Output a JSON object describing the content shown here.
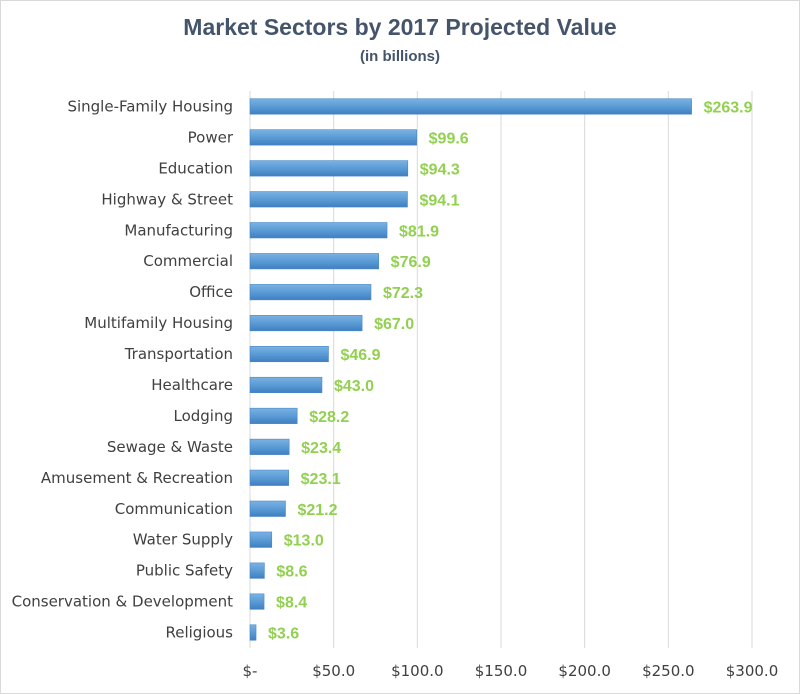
{
  "chart_data": {
    "type": "bar",
    "orientation": "horizontal",
    "title": "Market Sectors by 2017 Projected Value",
    "subtitle": "(in billions)",
    "categories": [
      "Single-Family Housing",
      "Power",
      "Education",
      "Highway & Street",
      "Manufacturing",
      "Commercial",
      "Office",
      "Multifamily Housing",
      "Transportation",
      "Healthcare",
      "Lodging",
      "Sewage & Waste",
      "Amusement & Recreation",
      "Communication",
      "Water Supply",
      "Public Safety",
      "Conservation & Development",
      "Religious"
    ],
    "values": [
      263.9,
      99.6,
      94.3,
      94.1,
      81.9,
      76.9,
      72.3,
      67.0,
      46.9,
      43.0,
      28.2,
      23.4,
      23.1,
      21.2,
      13.0,
      8.6,
      8.4,
      3.6
    ],
    "data_labels": [
      "$263.9",
      "$99.6",
      "$94.3",
      "$94.1",
      "$81.9",
      "$76.9",
      "$72.3",
      "$67.0",
      "$46.9",
      "$43.0",
      "$28.2",
      "$23.4",
      "$23.1",
      "$21.2",
      "$13.0",
      "$8.6",
      "$8.4",
      "$3.6"
    ],
    "xlim": [
      0,
      300
    ],
    "xticks": [
      0,
      50,
      100,
      150,
      200,
      250,
      300
    ],
    "xtick_labels": [
      "$-",
      "$50.0",
      "$100.0",
      "$150.0",
      "$200.0",
      "$250.0",
      "$300.0"
    ],
    "xlabel": "",
    "ylabel": "",
    "grid": "vertical",
    "legend": "none",
    "colors": {
      "bar": "#5b9bd5",
      "bar_dark": "#3f7fc0",
      "data_label": "#92d050",
      "grid": "#d9d9d9",
      "text": "#404040",
      "title": "#44546a"
    }
  }
}
